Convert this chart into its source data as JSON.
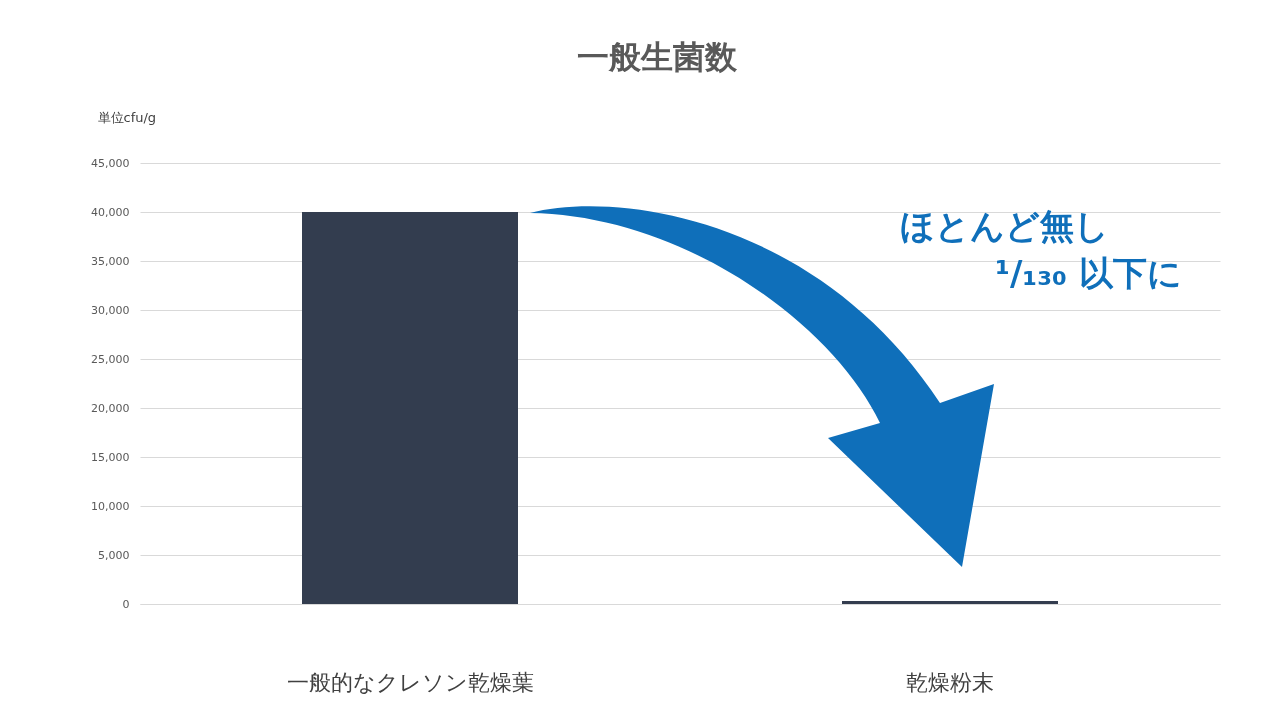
{
  "chart_data": {
    "type": "bar",
    "title": "一般生菌数",
    "ylabel": "単位cfu/g",
    "categories": [
      "一般的なクレソン乾燥葉",
      "乾燥粉末"
    ],
    "values": [
      40000,
      300
    ],
    "color": "#333d4f",
    "ylim": [
      0,
      45000
    ],
    "yticks": [
      0,
      {
        "value": 5000,
        "label": "5,000"
      },
      {
        "value": 10000,
        "label": "10,000"
      },
      {
        "value": 15000,
        "label": "15,000"
      },
      {
        "value": 20000,
        "label": "20,000"
      },
      {
        "value": 25000,
        "label": "25,000"
      },
      {
        "value": 30000,
        "label": "30,000"
      },
      {
        "value": 35000,
        "label": "35,000"
      },
      {
        "value": 40000,
        "label": "40,000"
      },
      {
        "value": 45000,
        "label": "45,000"
      }
    ],
    "grid": "y",
    "annotations": [
      "ほとんど無し",
      "¹/₁₃₀ 以下に"
    ]
  }
}
